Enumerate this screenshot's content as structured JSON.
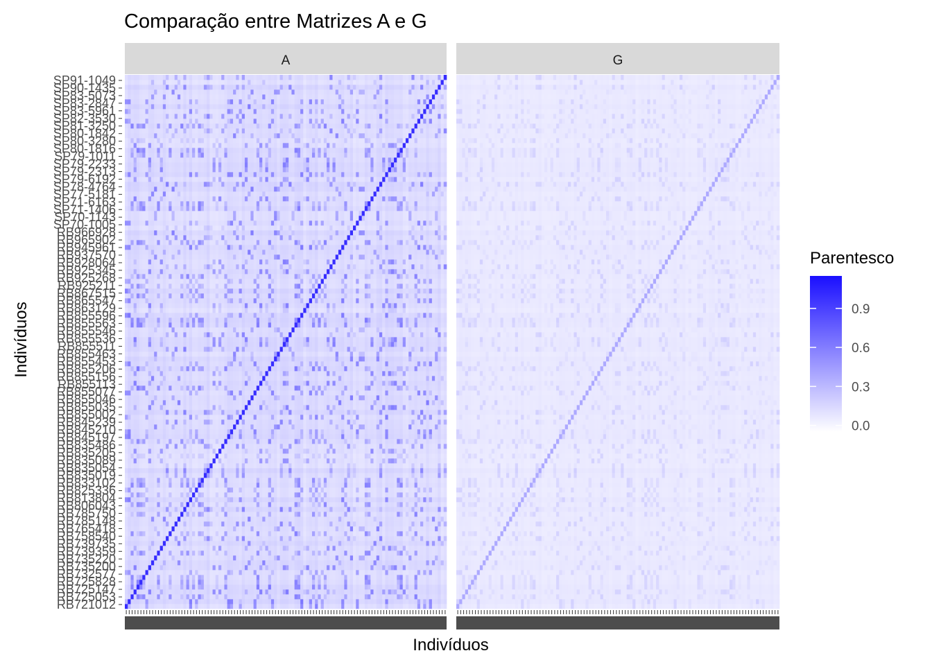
{
  "chart_data": {
    "type": "heatmap",
    "title": "Comparação entre Matrizes A e G",
    "xlabel": "Indivíduos",
    "ylabel": "Indivíduos",
    "facets": [
      "A",
      "G"
    ],
    "legend": {
      "title": "Parentesco",
      "position": "right",
      "colors": {
        "low": "#ffffff",
        "high": "#1a0fff"
      },
      "range": [
        -0.05,
        1.15
      ],
      "ticks": [
        0.0,
        0.3,
        0.6,
        0.9
      ],
      "tick_labels": [
        "0.0",
        "0.3",
        "0.6",
        "0.9"
      ]
    },
    "n_individuals": 110,
    "y_tick_labels_visible_top_to_bottom": [
      "SP91-1049",
      "SP90-1435",
      "SP83-5073",
      "SP83-2847",
      "SP83-5961",
      "SP82-3530",
      "SP81-3250",
      "SP80-1842",
      "SP80-3280",
      "SP80-1816",
      "SP79-1011",
      "SP79-2233",
      "SP79-2313",
      "SP79-6192",
      "SP78-4764",
      "SP77-5181",
      "SP71-6163",
      "SP71-1406",
      "SP70-1143",
      "SP70-1005",
      "RB966928",
      "RB965902",
      "RB945961",
      "RB937570",
      "RB928064",
      "RB925345",
      "RB925268",
      "RB925211",
      "RB867515",
      "RB865547",
      "RB863129",
      "RB855596",
      "RB855563",
      "RB855546",
      "RB855536",
      "RB855511",
      "RB855463",
      "RB855453",
      "RB855206",
      "RB855156",
      "RB855113",
      "RB855077",
      "RB855046",
      "RB855035",
      "RB855002",
      "RB845239",
      "RB845210",
      "RB845197",
      "RB835486",
      "RB835205",
      "RB835089",
      "RB835054",
      "RB835019",
      "RB833102",
      "RB825336",
      "RB813804",
      "RB806043",
      "RB785750",
      "RB785148",
      "RB765418",
      "RB758540",
      "RB739735",
      "RB739359",
      "RB735220",
      "RB735200",
      "RB732577",
      "RB725828",
      "RB725147",
      "RB725053",
      "RB721012"
    ],
    "diagonal": {
      "A": 1.0,
      "G": 0.38
    },
    "background_level": {
      "A": 0.07,
      "G": 0.04
    },
    "block_value_range": {
      "A": [
        0.1,
        0.45
      ],
      "G": [
        0.02,
        0.12
      ]
    }
  }
}
